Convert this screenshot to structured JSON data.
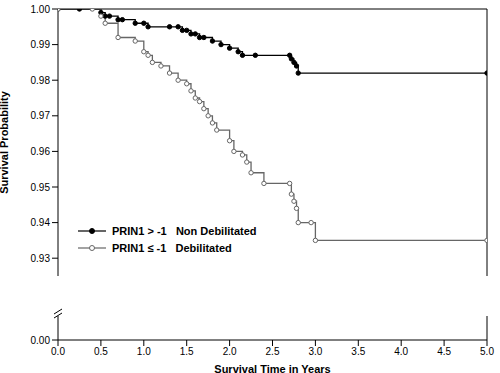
{
  "chart_data": {
    "type": "line",
    "x_label": "Survival Time in Years",
    "y_label": "Survival Probability",
    "xlim": [
      0,
      5
    ],
    "xticks": [
      {
        "value": 0,
        "label": "0.0"
      },
      0.5,
      {
        "value": 1,
        "label": "1.0"
      },
      1.5,
      {
        "value": 2,
        "label": "2.0"
      },
      2.5,
      {
        "value": 3,
        "label": "3.0"
      },
      3.5,
      {
        "value": 4,
        "label": "4.0"
      },
      4.5,
      {
        "value": 5,
        "label": "5.0"
      }
    ],
    "ylim": [
      0,
      1
    ],
    "yticks": [
      {
        "value": 0,
        "label": "0.00"
      },
      0.93,
      0.94,
      0.95,
      0.96,
      0.97,
      0.98,
      0.99,
      {
        "value": 1,
        "label": "1.00"
      }
    ],
    "grid": false,
    "legend": "lower left",
    "line_style": "step",
    "series": [
      {
        "name": "PRIN1 > -1   Non Debilitated",
        "color": "#000000",
        "marker": "circle",
        "x": [
          0,
          0.25,
          0.5,
          0.55,
          0.6,
          0.7,
          0.75,
          0.9,
          1.0,
          1.05,
          1.3,
          1.4,
          1.45,
          1.5,
          1.55,
          1.6,
          1.65,
          1.7,
          1.8,
          1.9,
          2.0,
          2.1,
          2.15,
          2.3,
          2.7,
          2.72,
          2.75,
          2.78,
          2.8,
          5.0
        ],
        "values": [
          1.0,
          1.0,
          0.999,
          0.998,
          0.998,
          0.997,
          0.997,
          0.996,
          0.996,
          0.995,
          0.995,
          0.995,
          0.994,
          0.994,
          0.993,
          0.993,
          0.992,
          0.992,
          0.991,
          0.99,
          0.989,
          0.988,
          0.987,
          0.987,
          0.987,
          0.986,
          0.985,
          0.984,
          0.982,
          0.982
        ]
      },
      {
        "name": "PRIN1 ≤ -1   Debilitated",
        "color": "#666666",
        "marker": "open_circle",
        "x": [
          0,
          0.4,
          0.5,
          0.55,
          0.7,
          0.9,
          1.0,
          1.05,
          1.1,
          1.2,
          1.3,
          1.4,
          1.5,
          1.55,
          1.6,
          1.65,
          1.7,
          1.75,
          1.8,
          1.85,
          2.0,
          2.05,
          2.15,
          2.2,
          2.25,
          2.4,
          2.7,
          2.72,
          2.75,
          2.78,
          2.8,
          2.95,
          3.0,
          5.0
        ],
        "values": [
          1.0,
          1.0,
          0.998,
          0.996,
          0.992,
          0.991,
          0.988,
          0.987,
          0.985,
          0.984,
          0.982,
          0.98,
          0.979,
          0.977,
          0.975,
          0.974,
          0.972,
          0.97,
          0.968,
          0.966,
          0.963,
          0.96,
          0.959,
          0.957,
          0.954,
          0.951,
          0.951,
          0.948,
          0.946,
          0.944,
          0.94,
          0.94,
          0.935,
          0.935
        ]
      }
    ]
  }
}
